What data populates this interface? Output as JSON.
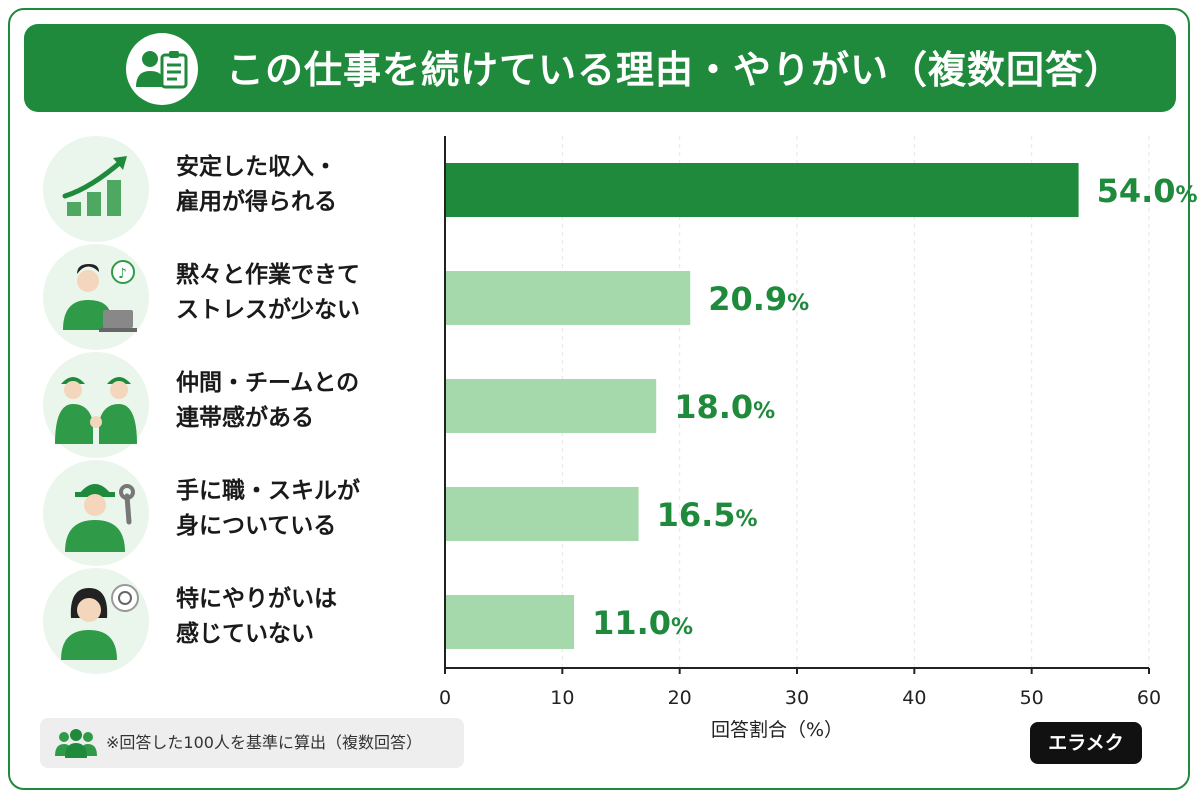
{
  "title": "この仕事を続けている理由・やりがい（複数回答）",
  "categories": [
    {
      "line1": "安定した収入・",
      "line2": "雇用が得られる",
      "icon": "growth-chart-icon"
    },
    {
      "line1": "黙々と作業できて",
      "line2": "ストレスが少ない",
      "icon": "worker-laptop-icon"
    },
    {
      "line1": "仲間・チームとの",
      "line2": "連帯感がある",
      "icon": "team-handshake-icon"
    },
    {
      "line1": "手に職・スキルが",
      "line2": "身についている",
      "icon": "worker-wrench-icon"
    },
    {
      "line1": "特にやりがいは",
      "line2": "感じていない",
      "icon": "thinking-person-icon"
    }
  ],
  "chart_data": {
    "type": "bar",
    "orientation": "horizontal",
    "categories": [
      "安定した収入・雇用が得られる",
      "黙々と作業できてストレスが少ない",
      "仲間・チームとの連帯感がある",
      "手に職・スキルが身についている",
      "特にやりがいは感じていない"
    ],
    "values": [
      54.0,
      20.9,
      18.0,
      16.5,
      11.0
    ],
    "value_labels": [
      "54.0",
      "20.9",
      "18.0",
      "16.5",
      "11.0"
    ],
    "value_suffix": "%",
    "xlim": [
      0,
      60
    ],
    "xticks": [
      0,
      10,
      20,
      30,
      40,
      50,
      60
    ],
    "xlabel": "回答割合（%）",
    "grid": true,
    "colors": {
      "highlight": "#1f8a3c",
      "normal": "#a5d8ab",
      "label": "#1f8a3c"
    }
  },
  "footnote": "※回答した100人を基準に算出（複数回答）",
  "logo": "エラメク"
}
